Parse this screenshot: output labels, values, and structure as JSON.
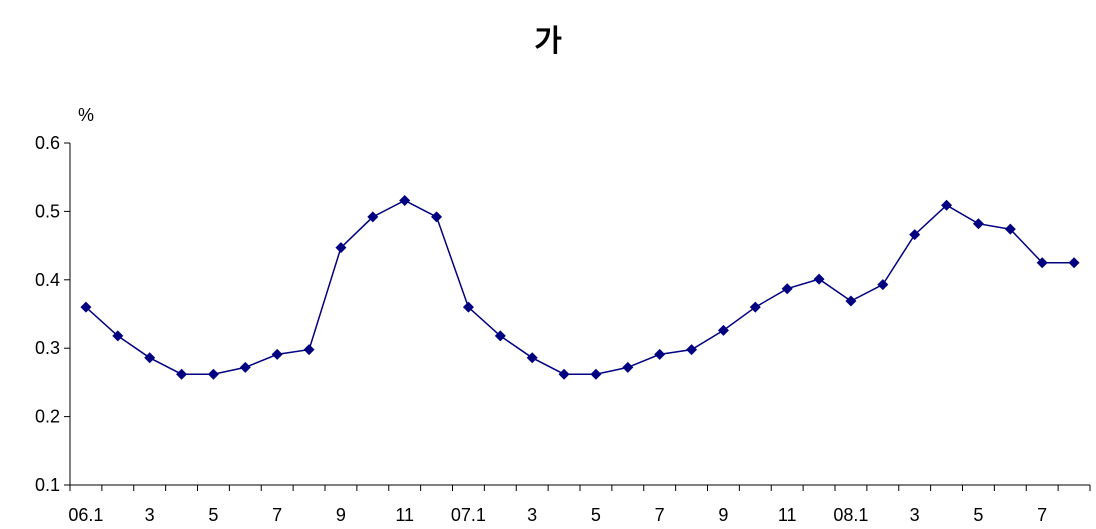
{
  "chart_data": {
    "type": "line",
    "title": "가",
    "ylabel": "%",
    "xlabel": "",
    "ylim": [
      0.1,
      0.6
    ],
    "yticks": [
      "0.1",
      "0.2",
      "0.3",
      "0.4",
      "0.5",
      "0.6"
    ],
    "x_tick_labels": [
      "06.1",
      "",
      "3",
      "",
      "5",
      "",
      "7",
      "",
      "9",
      "",
      "11",
      "",
      "07.1",
      "",
      "3",
      "",
      "5",
      "",
      "7",
      "",
      "9",
      "",
      "11",
      "",
      "08.1",
      "",
      "3",
      "",
      "5",
      "",
      "7",
      ""
    ],
    "series": [
      {
        "color": "#000080",
        "values": [
          0.36,
          0.318,
          0.286,
          0.262,
          0.262,
          0.272,
          0.291,
          0.298,
          0.447,
          0.492,
          0.516,
          0.492,
          0.36,
          0.318,
          0.286,
          0.262,
          0.262,
          0.272,
          0.291,
          0.298,
          0.326,
          0.36,
          0.387,
          0.401,
          0.369,
          0.393,
          0.466,
          0.509,
          0.482,
          0.474,
          0.425,
          0.425
        ]
      }
    ],
    "grid": false,
    "legend": "none"
  }
}
